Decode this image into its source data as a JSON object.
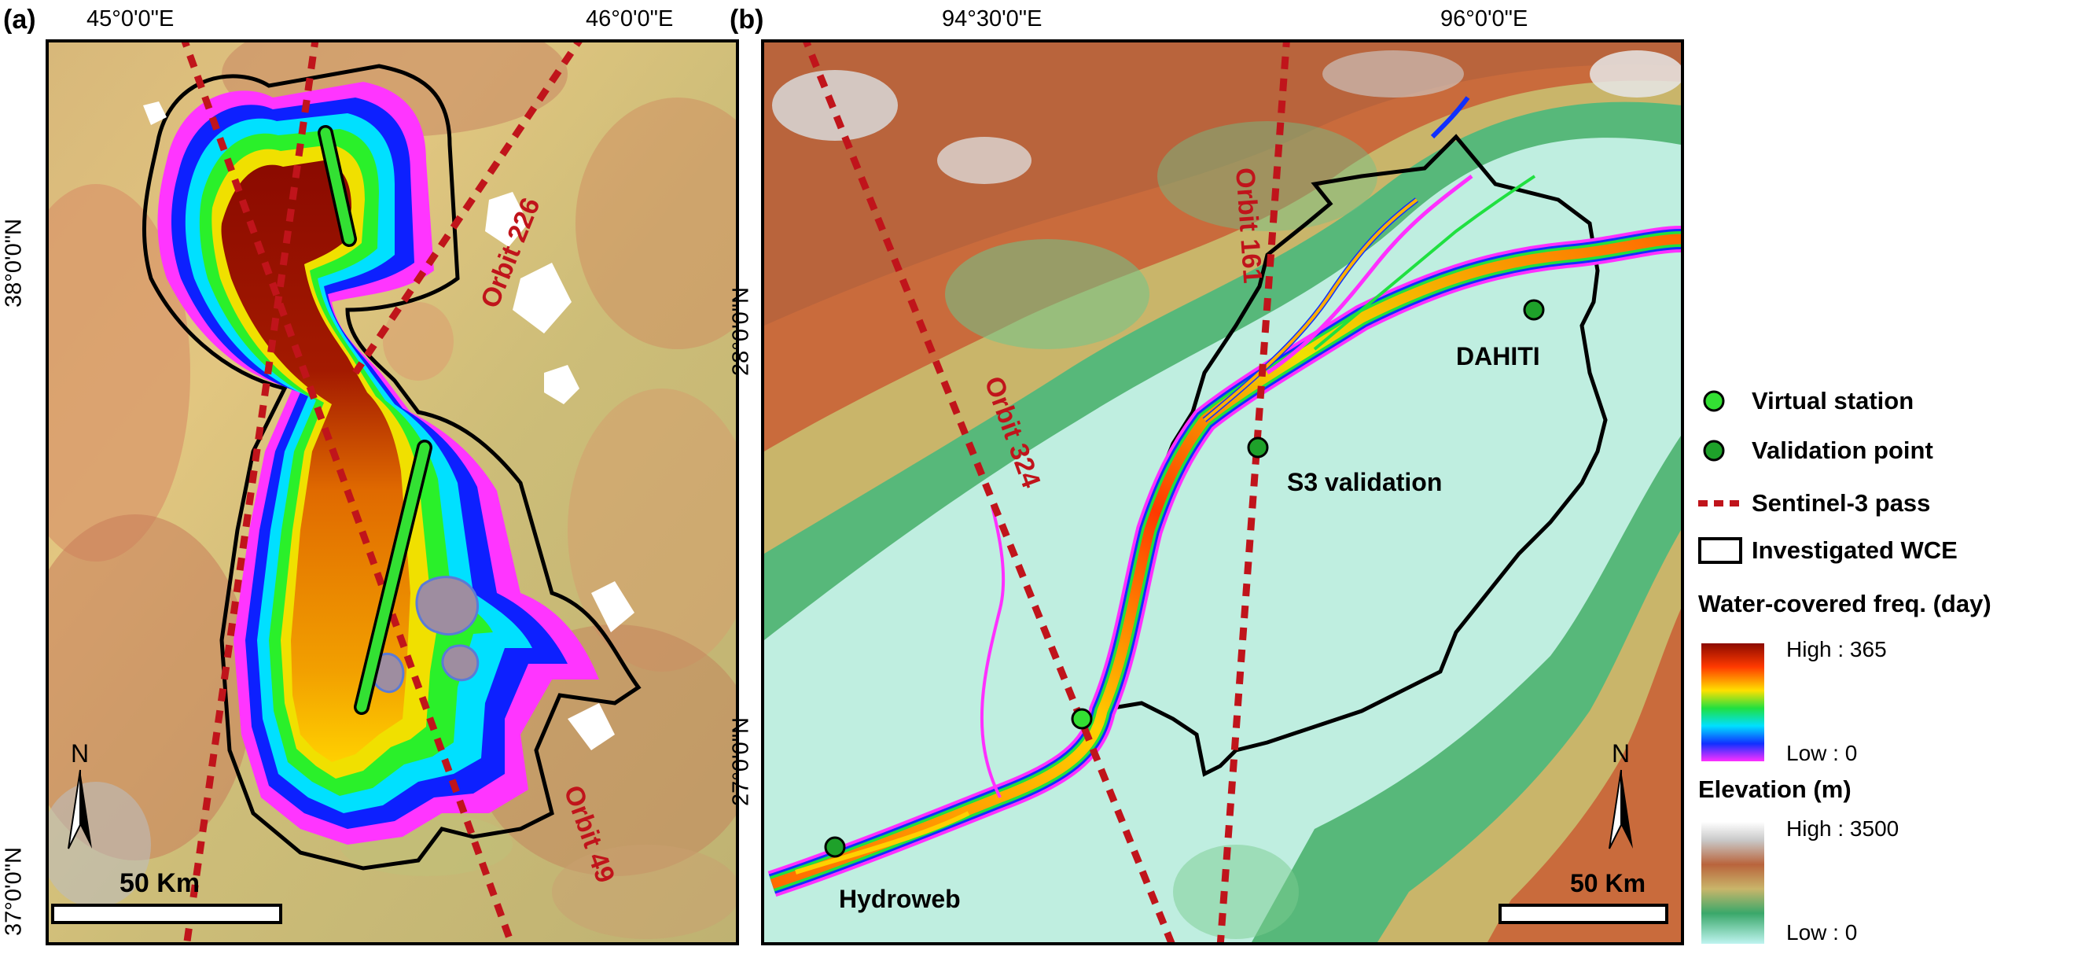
{
  "panel_a": {
    "label": "(a)",
    "lon_ticks": [
      "45°0'0\"E",
      "46°0'0\"E"
    ],
    "lat_ticks": [
      "38°0'0\"N",
      "37°0'0\"N"
    ],
    "orbits": [
      "Orbit 226",
      "Orbit 49"
    ],
    "scale": "50 Km",
    "north": "N"
  },
  "panel_b": {
    "label": "(b)",
    "lon_ticks": [
      "94°30'0\"E",
      "96°0'0\"E"
    ],
    "lat_ticks": [
      "28°0'0\"N",
      "27°0'0\"N"
    ],
    "orbits": [
      "Orbit 161",
      "Orbit 324"
    ],
    "stations": [
      "DAHITI",
      "S3 validation",
      "Hydroweb"
    ],
    "scale": "50 Km",
    "north": "N"
  },
  "legend": {
    "virtual_station": "Virtual station",
    "validation_point": "Validation point",
    "sentinel_pass": "Sentinel-3 pass",
    "wce": "Investigated WCE",
    "water_title": "Water-covered freq. (day)",
    "water_high": "High : 365",
    "water_low": "Low : 0",
    "elev_title": "Elevation (m)",
    "elev_high": "High : 3500",
    "elev_low": "Low : 0"
  },
  "colors": {
    "pass": "#c0141b",
    "virtual_station": "#33e033",
    "validation_point": "#1ea12a",
    "lake_deep": "#8b0a00"
  }
}
